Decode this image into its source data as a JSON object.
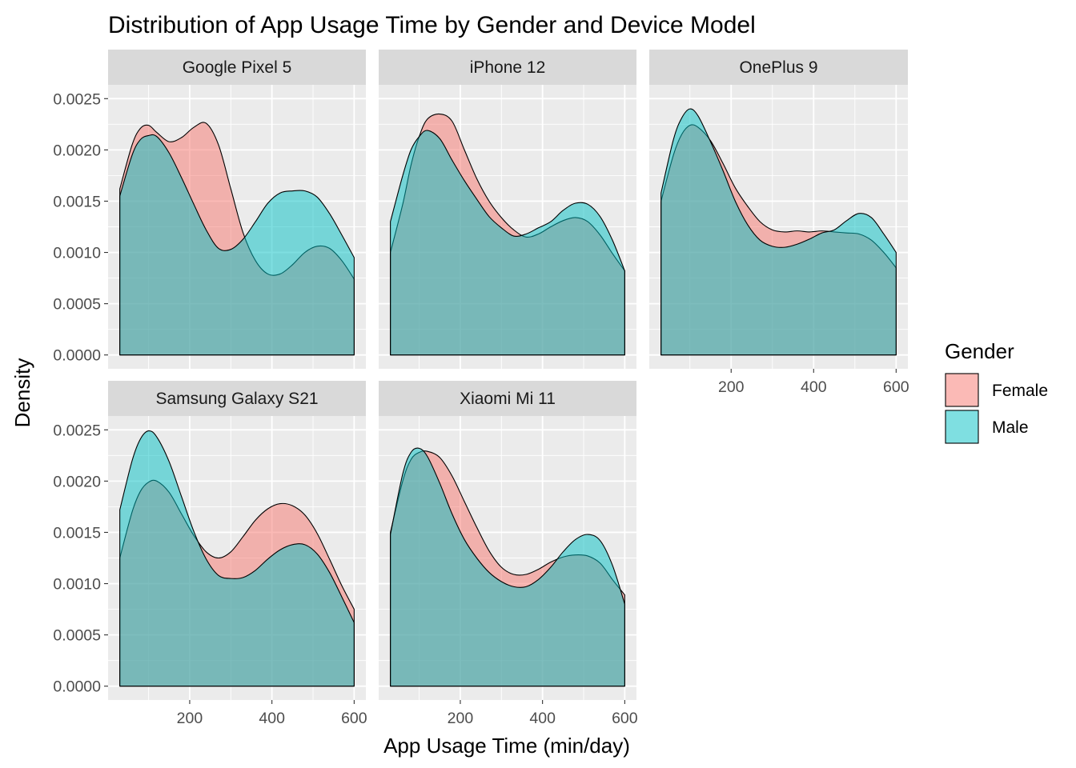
{
  "colors": {
    "female": "#F8766D",
    "male": "#00BFC4",
    "panel_bg": "#EBEBEB",
    "strip_bg": "#D9D9D9",
    "grid": "#FFFFFF"
  },
  "chart_data": {
    "type": "area",
    "subtype": "faceted density",
    "title": "Distribution of App Usage Time by Gender and Device Model",
    "xlabel": "App Usage Time (min/day)",
    "ylabel": "Density",
    "xlim": [
      30,
      600
    ],
    "ylim": [
      0,
      0.0025
    ],
    "x_ticks": [
      200,
      400,
      600
    ],
    "x_tick_labels": [
      "200",
      "400",
      "600"
    ],
    "y_ticks": [
      0,
      0.0005,
      0.001,
      0.0015,
      0.002,
      0.0025
    ],
    "y_tick_labels": [
      "0.0000",
      "0.0005",
      "0.0010",
      "0.0015",
      "0.0020",
      "0.0025"
    ],
    "grid": true,
    "legend": {
      "title": "Gender",
      "position": "right",
      "entries": [
        "Female",
        "Male"
      ]
    },
    "x": [
      30,
      60,
      80,
      100,
      120,
      150,
      180,
      210,
      240,
      270,
      300,
      330,
      360,
      390,
      420,
      450,
      480,
      510,
      540,
      570,
      600
    ],
    "panels": [
      {
        "name": "Google Pixel 5",
        "series": [
          {
            "name": "Female",
            "values": [
              0.00162,
              0.00205,
              0.00221,
              0.00224,
              0.00217,
              0.00208,
              0.00212,
              0.00222,
              0.00226,
              0.00205,
              0.00162,
              0.00119,
              0.00092,
              0.00079,
              0.00079,
              0.00088,
              0.001,
              0.00106,
              0.00104,
              0.00092,
              0.00074
            ]
          },
          {
            "name": "Male",
            "values": [
              0.00155,
              0.00195,
              0.0021,
              0.00214,
              0.00213,
              0.00197,
              0.00173,
              0.00147,
              0.00122,
              0.00104,
              0.00103,
              0.00113,
              0.0013,
              0.00148,
              0.00158,
              0.0016,
              0.0016,
              0.00154,
              0.00138,
              0.00117,
              0.00095
            ]
          }
        ]
      },
      {
        "name": "iPhone 12",
        "series": [
          {
            "name": "Female",
            "values": [
              0.001,
              0.00147,
              0.00185,
              0.00213,
              0.0023,
              0.00235,
              0.00228,
              0.002,
              0.00172,
              0.0015,
              0.00134,
              0.00122,
              0.00115,
              0.00118,
              0.00125,
              0.00131,
              0.00134,
              0.0013,
              0.00117,
              0.00099,
              0.00082
            ]
          },
          {
            "name": "Male",
            "values": [
              0.0013,
              0.00175,
              0.002,
              0.00213,
              0.00219,
              0.00211,
              0.0019,
              0.0017,
              0.00152,
              0.00135,
              0.00124,
              0.00116,
              0.00118,
              0.00124,
              0.0013,
              0.00141,
              0.00148,
              0.00147,
              0.00135,
              0.00112,
              0.00082
            ]
          }
        ]
      },
      {
        "name": "OnePlus 9",
        "series": [
          {
            "name": "Female",
            "values": [
              0.0015,
              0.00195,
              0.00215,
              0.00224,
              0.00222,
              0.00209,
              0.00187,
              0.00163,
              0.00145,
              0.0013,
              0.00122,
              0.0012,
              0.00121,
              0.0012,
              0.00121,
              0.0012,
              0.00119,
              0.00118,
              0.00112,
              0.001,
              0.00085
            ]
          },
          {
            "name": "Male",
            "values": [
              0.00158,
              0.0021,
              0.00231,
              0.0024,
              0.00233,
              0.00208,
              0.0018,
              0.0015,
              0.00127,
              0.00112,
              0.00106,
              0.00105,
              0.00108,
              0.00113,
              0.00119,
              0.00122,
              0.00131,
              0.00138,
              0.00134,
              0.00118,
              0.001
            ]
          }
        ]
      },
      {
        "name": "Samsung Galaxy S21",
        "series": [
          {
            "name": "Female",
            "values": [
              0.00125,
              0.0017,
              0.0019,
              0.00199,
              0.002,
              0.00189,
              0.00168,
              0.00147,
              0.00131,
              0.00125,
              0.00131,
              0.00146,
              0.00162,
              0.00173,
              0.00178,
              0.00176,
              0.00167,
              0.00149,
              0.00124,
              0.00098,
              0.00075
            ]
          },
          {
            "name": "Male",
            "values": [
              0.00172,
              0.0022,
              0.00241,
              0.00249,
              0.00243,
              0.00219,
              0.00185,
              0.00151,
              0.00124,
              0.00108,
              0.00105,
              0.00106,
              0.00113,
              0.00124,
              0.00133,
              0.00138,
              0.00138,
              0.00129,
              0.00111,
              0.00087,
              0.00062
            ]
          }
        ]
      },
      {
        "name": "Xiaomi Mi 11",
        "series": [
          {
            "name": "Female",
            "values": [
              0.0015,
              0.002,
              0.00221,
              0.00228,
              0.00229,
              0.00223,
              0.00205,
              0.0018,
              0.00155,
              0.00132,
              0.00116,
              0.00109,
              0.00109,
              0.00114,
              0.00121,
              0.00126,
              0.00128,
              0.00127,
              0.0012,
              0.00104,
              0.00089
            ]
          },
          {
            "name": "Male",
            "values": [
              0.00148,
              0.00207,
              0.00228,
              0.00232,
              0.00224,
              0.00198,
              0.00168,
              0.00143,
              0.00125,
              0.00111,
              0.00102,
              0.00097,
              0.00097,
              0.00104,
              0.00116,
              0.00131,
              0.00143,
              0.00148,
              0.00142,
              0.00118,
              0.0008
            ]
          }
        ]
      }
    ]
  }
}
